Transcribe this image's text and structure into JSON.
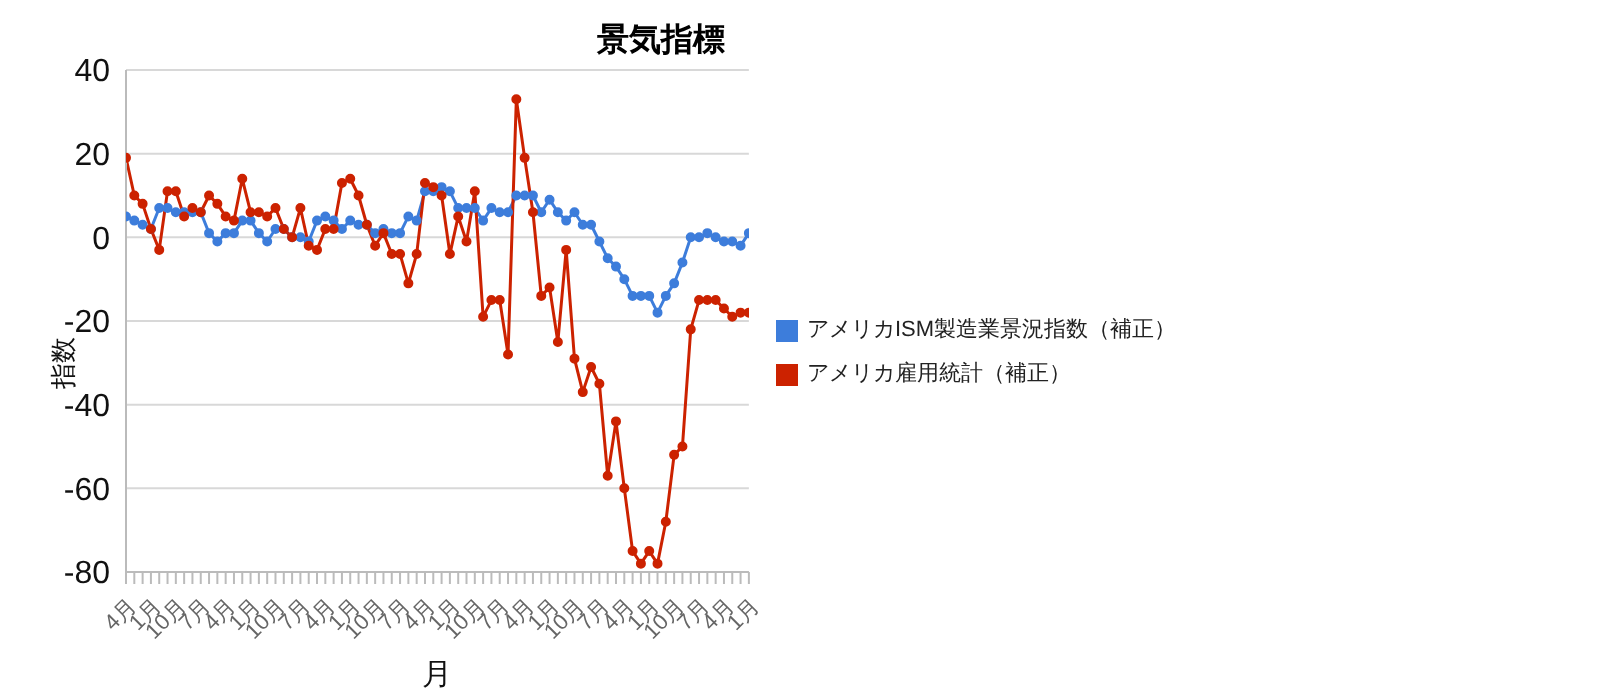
{
  "chart_data": {
    "type": "line",
    "title": "景気指標",
    "xlabel": "月",
    "ylabel": "指数",
    "categories": [
      "4月",
      null,
      null,
      "1月",
      null,
      null,
      "10月",
      null,
      null,
      "7月",
      null,
      null,
      "4月",
      null,
      null,
      "1月",
      null,
      null,
      "10月",
      null,
      null,
      "7月",
      null,
      null,
      "4月",
      null,
      null,
      "1月",
      null,
      null,
      "10月",
      null,
      null,
      "7月",
      null,
      null,
      "4月",
      null,
      null,
      "1月",
      null,
      null,
      "10月",
      null,
      null,
      "7月",
      null,
      null,
      "4月",
      null,
      null,
      "1月",
      null,
      null,
      "10月",
      null,
      null,
      "7月",
      null,
      null,
      "4月",
      null,
      null,
      "1月",
      null,
      null,
      "10月",
      null,
      null,
      "7月",
      null,
      null,
      "4月",
      null,
      null,
      "1月"
    ],
    "series": [
      {
        "name": "アメリカISM製造業景況指数（補正）",
        "color": "#3d7ddb",
        "values": [
          5,
          4,
          3,
          2,
          7,
          7,
          6,
          6,
          6,
          6,
          1,
          -1,
          1,
          1,
          4,
          4,
          1,
          -1,
          2,
          2,
          0,
          0,
          -1,
          4,
          5,
          4,
          2,
          4,
          3,
          3,
          1,
          2,
          1,
          1,
          5,
          4,
          11,
          11,
          12,
          11,
          7,
          7,
          7,
          4,
          7,
          6,
          6,
          10,
          10,
          10,
          6,
          9,
          6,
          4,
          6,
          3,
          3,
          -1,
          -5,
          -7,
          -10,
          -14,
          -14,
          -14,
          -18,
          -14,
          -11,
          -6,
          0,
          0,
          1,
          0,
          -1,
          -1,
          -2,
          1
        ]
      },
      {
        "name": "アメリカ雇用統計（補正）",
        "color": "#cc2200",
        "values": [
          19,
          10,
          8,
          2,
          -3,
          11,
          11,
          5,
          7,
          6,
          10,
          8,
          5,
          4,
          14,
          6,
          6,
          5,
          7,
          2,
          0,
          7,
          -2,
          -3,
          2,
          2,
          13,
          14,
          10,
          3,
          -2,
          1,
          -4,
          -4,
          -11,
          -4,
          13,
          12,
          10,
          -4,
          5,
          -1,
          11,
          -19,
          -15,
          -15,
          -28,
          33,
          19,
          6,
          -14,
          -12,
          -25,
          -3,
          -29,
          -37,
          -31,
          -35,
          -57,
          -44,
          -60,
          -75,
          -78,
          -75,
          -78,
          -68,
          -52,
          -50,
          -22,
          -15,
          -15,
          -15,
          -17,
          -19,
          -18,
          -18
        ]
      }
    ],
    "ylim": [
      -80,
      40
    ],
    "yticks": [
      -80,
      -60,
      -40,
      -20,
      0,
      20,
      40
    ],
    "grid": "y",
    "legend": "right",
    "marker": "circle",
    "line_style": "solid"
  }
}
